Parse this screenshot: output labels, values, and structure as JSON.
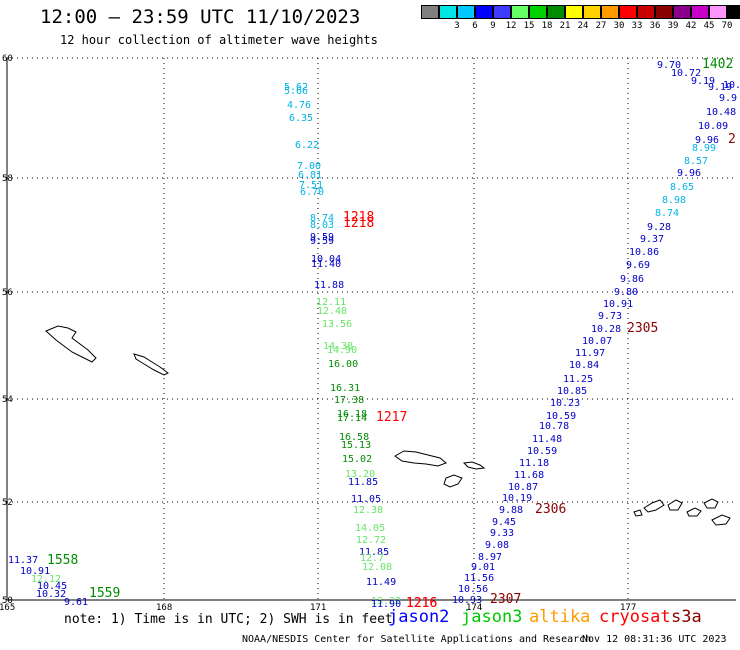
{
  "header": {
    "title": "12:00 – 23:59 UTC 11/10/2023",
    "subtitle": "12 hour collection of altimeter wave heights"
  },
  "legend": {
    "unit": "(ft)",
    "colors": [
      "#808080",
      "#00e5e5",
      "#00c8ff",
      "#0000ff",
      "#3c3cff",
      "#66ff66",
      "#00d200",
      "#008c00",
      "#ffff00",
      "#ffd200",
      "#ff9b00",
      "#ff0000",
      "#c80000",
      "#8b0000",
      "#8b008b",
      "#c800c8",
      "#ff96ff",
      "#000000"
    ],
    "labels": [
      "3",
      "6",
      "9",
      "12",
      "15",
      "18",
      "21",
      "24",
      "27",
      "30",
      "33",
      "36",
      "39",
      "42",
      "45",
      "70"
    ]
  },
  "map": {
    "lat_ticks": [
      "60",
      "58",
      "56",
      "54",
      "52",
      "50"
    ],
    "lon_ticks": [
      "165",
      "168",
      "171",
      "174",
      "177"
    ],
    "wave_labels": [
      {
        "text": "9.70",
        "c": "#0000c8"
      },
      {
        "text": "1402",
        "c": "#008c00"
      },
      {
        "text": "10.72",
        "c": "#0000c8"
      },
      {
        "text": "9.19",
        "c": "#0000c8"
      },
      {
        "text": "9.19",
        "c": "#0000c8"
      },
      {
        "text": "10.",
        "c": "#0000c8"
      },
      {
        "text": "9.9",
        "c": "#0000c8"
      },
      {
        "text": "10.48",
        "c": "#0000c8"
      },
      {
        "text": "10.09",
        "c": "#0000c8"
      },
      {
        "text": "9.96",
        "c": "#0000c8"
      },
      {
        "text": "2",
        "c": "#8b0000"
      },
      {
        "text": "8.99",
        "c": "#00b4e6"
      },
      {
        "text": "8.57",
        "c": "#00b4e6"
      },
      {
        "text": "9.96",
        "c": "#0000c8"
      },
      {
        "text": "8.65",
        "c": "#00b4e6"
      },
      {
        "text": "8.98",
        "c": "#00b4e6"
      },
      {
        "text": "8.74",
        "c": "#00b4e6"
      },
      {
        "text": "9.28",
        "c": "#0000c8"
      },
      {
        "text": "9.37",
        "c": "#0000c8"
      },
      {
        "text": "10.86",
        "c": "#0000c8"
      },
      {
        "text": "9.69",
        "c": "#0000c8"
      },
      {
        "text": "9.86",
        "c": "#0000c8"
      },
      {
        "text": "9.80",
        "c": "#0000c8"
      },
      {
        "text": "10.91",
        "c": "#0000c8"
      },
      {
        "text": "9.73",
        "c": "#0000c8"
      },
      {
        "text": "10.28",
        "c": "#0000c8"
      },
      {
        "text": "2305",
        "c": "#8b0000"
      },
      {
        "text": "10.07",
        "c": "#0000c8"
      },
      {
        "text": "11.97",
        "c": "#0000c8"
      },
      {
        "text": "10.84",
        "c": "#0000c8"
      },
      {
        "text": "11.25",
        "c": "#0000c8"
      },
      {
        "text": "10.85",
        "c": "#0000c8"
      },
      {
        "text": "10.23",
        "c": "#0000c8"
      },
      {
        "text": "10.59",
        "c": "#0000c8"
      },
      {
        "text": "10.78",
        "c": "#0000c8"
      },
      {
        "text": "11.48",
        "c": "#0000c8"
      },
      {
        "text": "10.59",
        "c": "#0000c8"
      },
      {
        "text": "11.18",
        "c": "#0000c8"
      },
      {
        "text": "11.68",
        "c": "#0000c8"
      },
      {
        "text": "10.87",
        "c": "#0000c8"
      },
      {
        "text": "10.19",
        "c": "#0000c8"
      },
      {
        "text": "9.88",
        "c": "#0000c8"
      },
      {
        "text": "2306",
        "c": "#8b0000"
      },
      {
        "text": "9.45",
        "c": "#0000c8"
      },
      {
        "text": "9.33",
        "c": "#0000c8"
      },
      {
        "text": "9.08",
        "c": "#0000c8"
      },
      {
        "text": "8.97",
        "c": "#0000c8"
      },
      {
        "text": "9.01",
        "c": "#0000c8"
      },
      {
        "text": "11.56",
        "c": "#0000c8"
      },
      {
        "text": "10.56",
        "c": "#0000c8"
      },
      {
        "text": "10.93",
        "c": "#0000c8"
      },
      {
        "text": "2307",
        "c": "#8b0000"
      },
      {
        "text": "5.62",
        "c": "#00b4e6"
      },
      {
        "text": "5.66",
        "c": "#00b4e6"
      },
      {
        "text": "4.76",
        "c": "#00b4e6"
      },
      {
        "text": "6.35",
        "c": "#00b4e6"
      },
      {
        "text": "6.22",
        "c": "#00b4e6"
      },
      {
        "text": "7.00",
        "c": "#00b4e6"
      },
      {
        "text": "6.81",
        "c": "#00b4e6"
      },
      {
        "text": "7.51",
        "c": "#00b4e6"
      },
      {
        "text": "6.70",
        "c": "#00b4e6"
      },
      {
        "text": "8.74",
        "c": "#00b4e6"
      },
      {
        "text": "1218",
        "c": "#ff0000"
      },
      {
        "text": "8.03",
        "c": "#00b4e6"
      },
      {
        "text": "1218",
        "c": "#ff0000"
      },
      {
        "text": "9.59",
        "c": "#0000c8"
      },
      {
        "text": "9.59",
        "c": "#0000c8"
      },
      {
        "text": "10.04",
        "c": "#0000c8"
      },
      {
        "text": "11.40",
        "c": "#0000c8"
      },
      {
        "text": "11.88",
        "c": "#0000c8"
      },
      {
        "text": "12.11",
        "c": "#66e666"
      },
      {
        "text": "12.48",
        "c": "#66e666"
      },
      {
        "text": "13.56",
        "c": "#66e666"
      },
      {
        "text": "14.38",
        "c": "#66e666"
      },
      {
        "text": "14.90",
        "c": "#66e666"
      },
      {
        "text": "16.00",
        "c": "#008c00"
      },
      {
        "text": "16.31",
        "c": "#008c00"
      },
      {
        "text": "17.38",
        "c": "#008c00"
      },
      {
        "text": "16.18",
        "c": "#008c00"
      },
      {
        "text": "17.14",
        "c": "#008c00"
      },
      {
        "text": "1217",
        "c": "#ff0000"
      },
      {
        "text": "16.58",
        "c": "#008c00"
      },
      {
        "text": "15.13",
        "c": "#008c00"
      },
      {
        "text": "15.02",
        "c": "#008c00"
      },
      {
        "text": "13.20",
        "c": "#66e666"
      },
      {
        "text": "11.85",
        "c": "#0000c8"
      },
      {
        "text": "11.05",
        "c": "#0000c8"
      },
      {
        "text": "12.38",
        "c": "#66e666"
      },
      {
        "text": "14.05",
        "c": "#66e666"
      },
      {
        "text": "12.72",
        "c": "#66e666"
      },
      {
        "text": "11.85",
        "c": "#0000c8"
      },
      {
        "text": "12.7",
        "c": "#66e666"
      },
      {
        "text": "12.08",
        "c": "#66e666"
      },
      {
        "text": "11.49",
        "c": "#0000c8"
      },
      {
        "text": "13.22",
        "c": "#66e666"
      },
      {
        "text": "11.90",
        "c": "#0000c8"
      },
      {
        "text": "1216",
        "c": "#ff0000"
      },
      {
        "text": "1216",
        "c": "#ff0000"
      },
      {
        "text": "11.37",
        "c": "#0000c8"
      },
      {
        "text": "1558",
        "c": "#008c00"
      },
      {
        "text": "10.91",
        "c": "#0000c8"
      },
      {
        "text": "12.12",
        "c": "#66e666"
      },
      {
        "text": "10.45",
        "c": "#0000c8"
      },
      {
        "text": "10.32",
        "c": "#0000c8"
      },
      {
        "text": "1559",
        "c": "#008c00"
      },
      {
        "text": "9.61",
        "c": "#0000c8"
      }
    ]
  },
  "footer": {
    "note": "note: 1) Time is in UTC; 2) SWH is in feet",
    "satellites": [
      {
        "name": "jason2",
        "color": "#0000ff"
      },
      {
        "name": "jason3",
        "color": "#00c800"
      },
      {
        "name": "altika",
        "color": "#ff9b00"
      },
      {
        "name": "cryosat",
        "color": "#ff0000"
      },
      {
        "name": "s3a",
        "color": "#8b0000"
      }
    ],
    "credit": "NOAA/NESDIS Center for Satellite Applications and Research",
    "timestamp": "Nov 12 08:31:36 UTC 2023"
  }
}
